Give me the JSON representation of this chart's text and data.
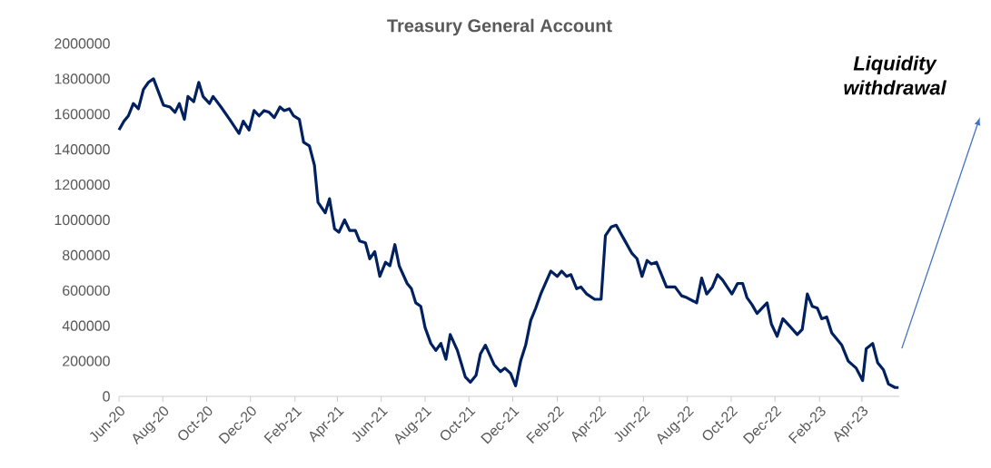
{
  "chart_data": {
    "type": "line",
    "title": "Treasury General Account",
    "x": [
      "2020-06-01",
      "2020-06-08",
      "2020-06-14",
      "2020-06-21",
      "2020-06-28",
      "2020-07-05",
      "2020-07-12",
      "2020-07-19",
      "2020-08-02",
      "2020-08-11",
      "2020-08-18",
      "2020-08-24",
      "2020-08-31",
      "2020-09-05",
      "2020-09-13",
      "2020-09-20",
      "2020-09-26",
      "2020-10-05",
      "2020-10-10",
      "2020-10-21",
      "2020-11-02",
      "2020-11-15",
      "2020-11-21",
      "2020-11-29",
      "2020-12-06",
      "2020-12-13",
      "2020-12-20",
      "2020-12-27",
      "2021-01-03",
      "2021-01-11",
      "2021-01-17",
      "2021-01-24",
      "2021-01-30",
      "2021-02-07",
      "2021-02-13",
      "2021-02-21",
      "2021-02-28",
      "2021-03-05",
      "2021-03-15",
      "2021-03-21",
      "2021-03-28",
      "2021-04-03",
      "2021-04-11",
      "2021-04-18",
      "2021-04-26",
      "2021-05-02",
      "2021-05-10",
      "2021-05-16",
      "2021-05-23",
      "2021-05-30",
      "2021-06-07",
      "2021-06-13",
      "2021-06-20",
      "2021-06-26",
      "2021-07-07",
      "2021-07-13",
      "2021-07-19",
      "2021-07-26",
      "2021-08-01",
      "2021-08-09",
      "2021-08-16",
      "2021-08-23",
      "2021-08-30",
      "2021-09-05",
      "2021-09-15",
      "2021-09-26",
      "2021-10-03",
      "2021-10-11",
      "2021-10-17",
      "2021-10-24",
      "2021-11-05",
      "2021-11-14",
      "2021-11-20",
      "2021-11-28",
      "2021-12-05",
      "2021-12-12",
      "2021-12-19",
      "2021-12-26",
      "2022-01-02",
      "2022-01-09",
      "2022-01-23",
      "2022-02-01",
      "2022-02-07",
      "2022-02-14",
      "2022-02-20",
      "2022-02-28",
      "2022-03-06",
      "2022-03-14",
      "2022-03-25",
      "2022-04-03",
      "2022-04-09",
      "2022-04-17",
      "2022-04-24",
      "2022-05-05",
      "2022-05-16",
      "2022-05-23",
      "2022-05-30",
      "2022-06-06",
      "2022-06-12",
      "2022-06-19",
      "2022-07-03",
      "2022-07-15",
      "2022-07-24",
      "2022-07-31",
      "2022-08-14",
      "2022-08-21",
      "2022-08-28",
      "2022-09-05",
      "2022-09-12",
      "2022-09-19",
      "2022-10-02",
      "2022-10-10",
      "2022-10-17",
      "2022-10-23",
      "2022-10-30",
      "2022-11-06",
      "2022-11-20",
      "2022-11-26",
      "2022-12-04",
      "2022-12-12",
      "2022-12-21",
      "2023-01-01",
      "2023-01-08",
      "2023-01-15",
      "2023-01-22",
      "2023-01-29",
      "2023-02-04",
      "2023-02-11",
      "2023-02-18",
      "2023-03-04",
      "2023-03-13",
      "2023-03-24",
      "2023-04-02",
      "2023-04-07",
      "2023-04-16",
      "2023-04-23",
      "2023-05-01",
      "2023-05-08",
      "2023-05-17",
      "2023-05-22"
    ],
    "series": [
      {
        "color": "#002060",
        "values": [
          1510000,
          1560000,
          1590000,
          1660000,
          1630000,
          1740000,
          1780000,
          1800000,
          1650000,
          1640000,
          1610000,
          1660000,
          1570000,
          1700000,
          1670000,
          1780000,
          1700000,
          1660000,
          1700000,
          1640000,
          1570000,
          1490000,
          1560000,
          1510000,
          1620000,
          1590000,
          1620000,
          1610000,
          1580000,
          1640000,
          1620000,
          1630000,
          1590000,
          1570000,
          1440000,
          1420000,
          1310000,
          1100000,
          1040000,
          1120000,
          950000,
          930000,
          1000000,
          940000,
          940000,
          880000,
          870000,
          780000,
          820000,
          680000,
          760000,
          740000,
          860000,
          740000,
          640000,
          610000,
          530000,
          510000,
          390000,
          300000,
          260000,
          300000,
          210000,
          350000,
          260000,
          110000,
          80000,
          120000,
          240000,
          290000,
          180000,
          140000,
          160000,
          130000,
          60000,
          200000,
          290000,
          430000,
          500000,
          580000,
          710000,
          680000,
          710000,
          680000,
          690000,
          610000,
          620000,
          580000,
          550000,
          550000,
          910000,
          960000,
          970000,
          890000,
          810000,
          780000,
          680000,
          770000,
          750000,
          760000,
          620000,
          620000,
          570000,
          560000,
          530000,
          670000,
          580000,
          620000,
          690000,
          660000,
          580000,
          640000,
          640000,
          560000,
          520000,
          470000,
          530000,
          410000,
          340000,
          440000,
          400000,
          350000,
          380000,
          580000,
          510000,
          500000,
          440000,
          450000,
          360000,
          290000,
          200000,
          160000,
          90000,
          270000,
          300000,
          190000,
          150000,
          70000,
          50000,
          50000
        ]
      }
    ],
    "xlim": [
      "2020-06-01",
      "2023-05-23"
    ],
    "xticks": [
      {
        "value": "2020-06-01",
        "label": "Jun-20"
      },
      {
        "value": "2020-08-01",
        "label": "Aug-20"
      },
      {
        "value": "2020-10-01",
        "label": "Oct-20"
      },
      {
        "value": "2020-12-01",
        "label": "Dec-20"
      },
      {
        "value": "2021-02-01",
        "label": "Feb-21"
      },
      {
        "value": "2021-04-01",
        "label": "Apr-21"
      },
      {
        "value": "2021-06-01",
        "label": "Jun-21"
      },
      {
        "value": "2021-08-01",
        "label": "Aug-21"
      },
      {
        "value": "2021-10-01",
        "label": "Oct-21"
      },
      {
        "value": "2021-12-01",
        "label": "Dec-21"
      },
      {
        "value": "2022-02-01",
        "label": "Feb-22"
      },
      {
        "value": "2022-04-01",
        "label": "Apr-22"
      },
      {
        "value": "2022-06-01",
        "label": "Jun-22"
      },
      {
        "value": "2022-08-01",
        "label": "Aug-22"
      },
      {
        "value": "2022-10-01",
        "label": "Oct-22"
      },
      {
        "value": "2022-12-01",
        "label": "Dec-22"
      },
      {
        "value": "2023-02-01",
        "label": "Feb-23"
      },
      {
        "value": "2023-04-01",
        "label": "Apr-23"
      }
    ],
    "ylim": [
      0,
      2000000
    ],
    "yticks": [
      0,
      200000,
      400000,
      600000,
      800000,
      1000000,
      1200000,
      1400000,
      1600000,
      1800000,
      2000000
    ],
    "annotations": [
      "Liquidity withdrawal"
    ]
  }
}
